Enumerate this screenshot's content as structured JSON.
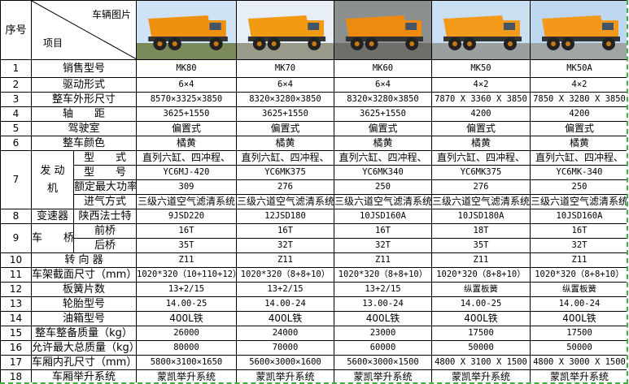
{
  "header": {
    "index_label": "序号",
    "item_label": "项目",
    "image_label": "车辆图片"
  },
  "images": [
    {
      "model": "MK80",
      "icon": "dump-truck-photo",
      "sky": "#cfe3f7",
      "body": "#f0900f",
      "ground": "#7a8a5a"
    },
    {
      "model": "MK70",
      "icon": "dump-truck-photo",
      "sky": "#e7eef6",
      "body": "#f29a12",
      "ground": "#9a9a8a"
    },
    {
      "model": "MK60",
      "icon": "dump-truck-photo",
      "sky": "#8b8f90",
      "body": "#ef8a10",
      "ground": "#6f6f6a"
    },
    {
      "model": "MK50",
      "icon": "dump-truck-photo",
      "sky": "#c9dff2",
      "body": "#f39a1a",
      "ground": "#9aa0a0"
    },
    {
      "model": "MK50A",
      "icon": "dump-truck-photo",
      "sky": "#bcd7ef",
      "body": "#f3981a",
      "ground": "#a0a4a4"
    }
  ],
  "rows": [
    {
      "no": "1",
      "label": "销售型号",
      "values": [
        "MK80",
        "MK70",
        "MK60",
        "MK50",
        "MK50A"
      ],
      "mono": true
    },
    {
      "no": "2",
      "label": "驱动形式",
      "values": [
        "6×4",
        "6×4",
        "6×4",
        "4×2",
        "4×2"
      ],
      "mono": true
    },
    {
      "no": "3",
      "label": "整车外形尺寸",
      "values": [
        "8570×3325×3850",
        "8320×3280×3850",
        "8320×3280×3850",
        "7870 X 3360 X 3850",
        "7850 X 3280 X 3850"
      ],
      "mono": true
    },
    {
      "no": "4",
      "label": "轴　　距",
      "values": [
        "3625+1550",
        "3625+1550",
        "3625+1550",
        "4200",
        "4200"
      ],
      "mono": true
    },
    {
      "no": "5",
      "label": "驾驶室",
      "values": [
        "偏置式",
        "偏置式",
        "偏置式",
        "偏置式",
        "偏置式"
      ]
    },
    {
      "no": "6",
      "label": "整车颜色",
      "values": [
        "橘黄",
        "橘黄",
        "橘黄",
        "橘黄",
        "橘黄"
      ]
    },
    {
      "no": "7",
      "label": "发 动 机",
      "sub": [
        {
          "label": "型　　式",
          "values": [
            "直列六缸、四冲程、",
            "直列六缸、四冲程、",
            "直列六缸、四冲程、",
            "直列六缸、四冲程、",
            "直列六缸、四冲程、"
          ]
        },
        {
          "label": "型　　号",
          "values": [
            "YC6MJ-420",
            "YC6MK375",
            "YC6MK340",
            "YC6MK375",
            "YC6MK-340"
          ],
          "mono": true
        },
        {
          "label": "额定最大功率",
          "values": [
            "309",
            "276",
            "250",
            "276",
            "250"
          ],
          "mono": true
        },
        {
          "label": "进气方式",
          "values": [
            "三级六道空气滤清系统",
            "三级六道空气滤清系统",
            "三级六道空气滤清系统",
            "三级六道空气滤清系统",
            "三级六道空气滤清系统"
          ]
        }
      ]
    },
    {
      "no": "8",
      "label": "变速器",
      "sub": [
        {
          "label": "陕西法士特",
          "values": [
            "9JSD220",
            "12JSD180",
            "10JSD160A",
            "10JSD180A",
            "10JSD160A"
          ],
          "mono": true
        }
      ]
    },
    {
      "no": "9",
      "label": "车　　桥",
      "sub": [
        {
          "label": "前桥",
          "values": [
            "16T",
            "16T",
            "16T",
            "18T",
            "16T"
          ],
          "mono": true
        },
        {
          "label": "后桥",
          "values": [
            "35T",
            "32T",
            "32T",
            "35T",
            "32T"
          ],
          "mono": true
        }
      ]
    },
    {
      "no": "10",
      "label": "转 向 器",
      "values": [
        "Z11",
        "Z11",
        "Z11",
        "Z11",
        "Z11"
      ],
      "mono": true
    },
    {
      "no": "11",
      "label": "车架截面尺寸（mm）",
      "values": [
        "1020*320（10+110+12）",
        "1020*320（8+8+10）",
        "1020*320（8+8+10）",
        "1020*320（8+8+10）",
        "1020*320（8+8+10）"
      ],
      "mono": true
    },
    {
      "no": "12",
      "label": "板簧片数",
      "values": [
        "13+2/15",
        "13+2/15",
        "13+2/15",
        "纵置板簧",
        "纵置板簧"
      ],
      "mono": true
    },
    {
      "no": "13",
      "label": "轮胎型号",
      "values": [
        "14.00-25",
        "14.00-24",
        "13.00-24",
        "14.00-25",
        "14.00-24"
      ],
      "mono": true
    },
    {
      "no": "14",
      "label": "油箱型号",
      "values": [
        "400L铁",
        "400L铁",
        "400L铁",
        "400L铁",
        "400L铁"
      ]
    },
    {
      "no": "15",
      "label": "整车整备质量（kg）",
      "values": [
        "26000",
        "24000",
        "23000",
        "17500",
        "17500"
      ],
      "mono": true
    },
    {
      "no": "16",
      "label": "允许最大总质量（kg）",
      "values": [
        "80000",
        "70000",
        "60000",
        "50000",
        "50000"
      ],
      "mono": true
    },
    {
      "no": "17",
      "label": "车厢内孔尺寸（mm）",
      "values": [
        "5800×3100×1650",
        "5600×3000×1600",
        "5600×3000×1500",
        "4800 X 3100 X 1500",
        "4800 X 3000 X 1500"
      ],
      "mono": true
    },
    {
      "no": "18",
      "label": "车厢举升系统",
      "values": [
        "蒙凯举升系统",
        "蒙凯举升系统",
        "蒙凯举升系统",
        "蒙凯举升系统",
        "蒙凯举升系统"
      ]
    }
  ]
}
